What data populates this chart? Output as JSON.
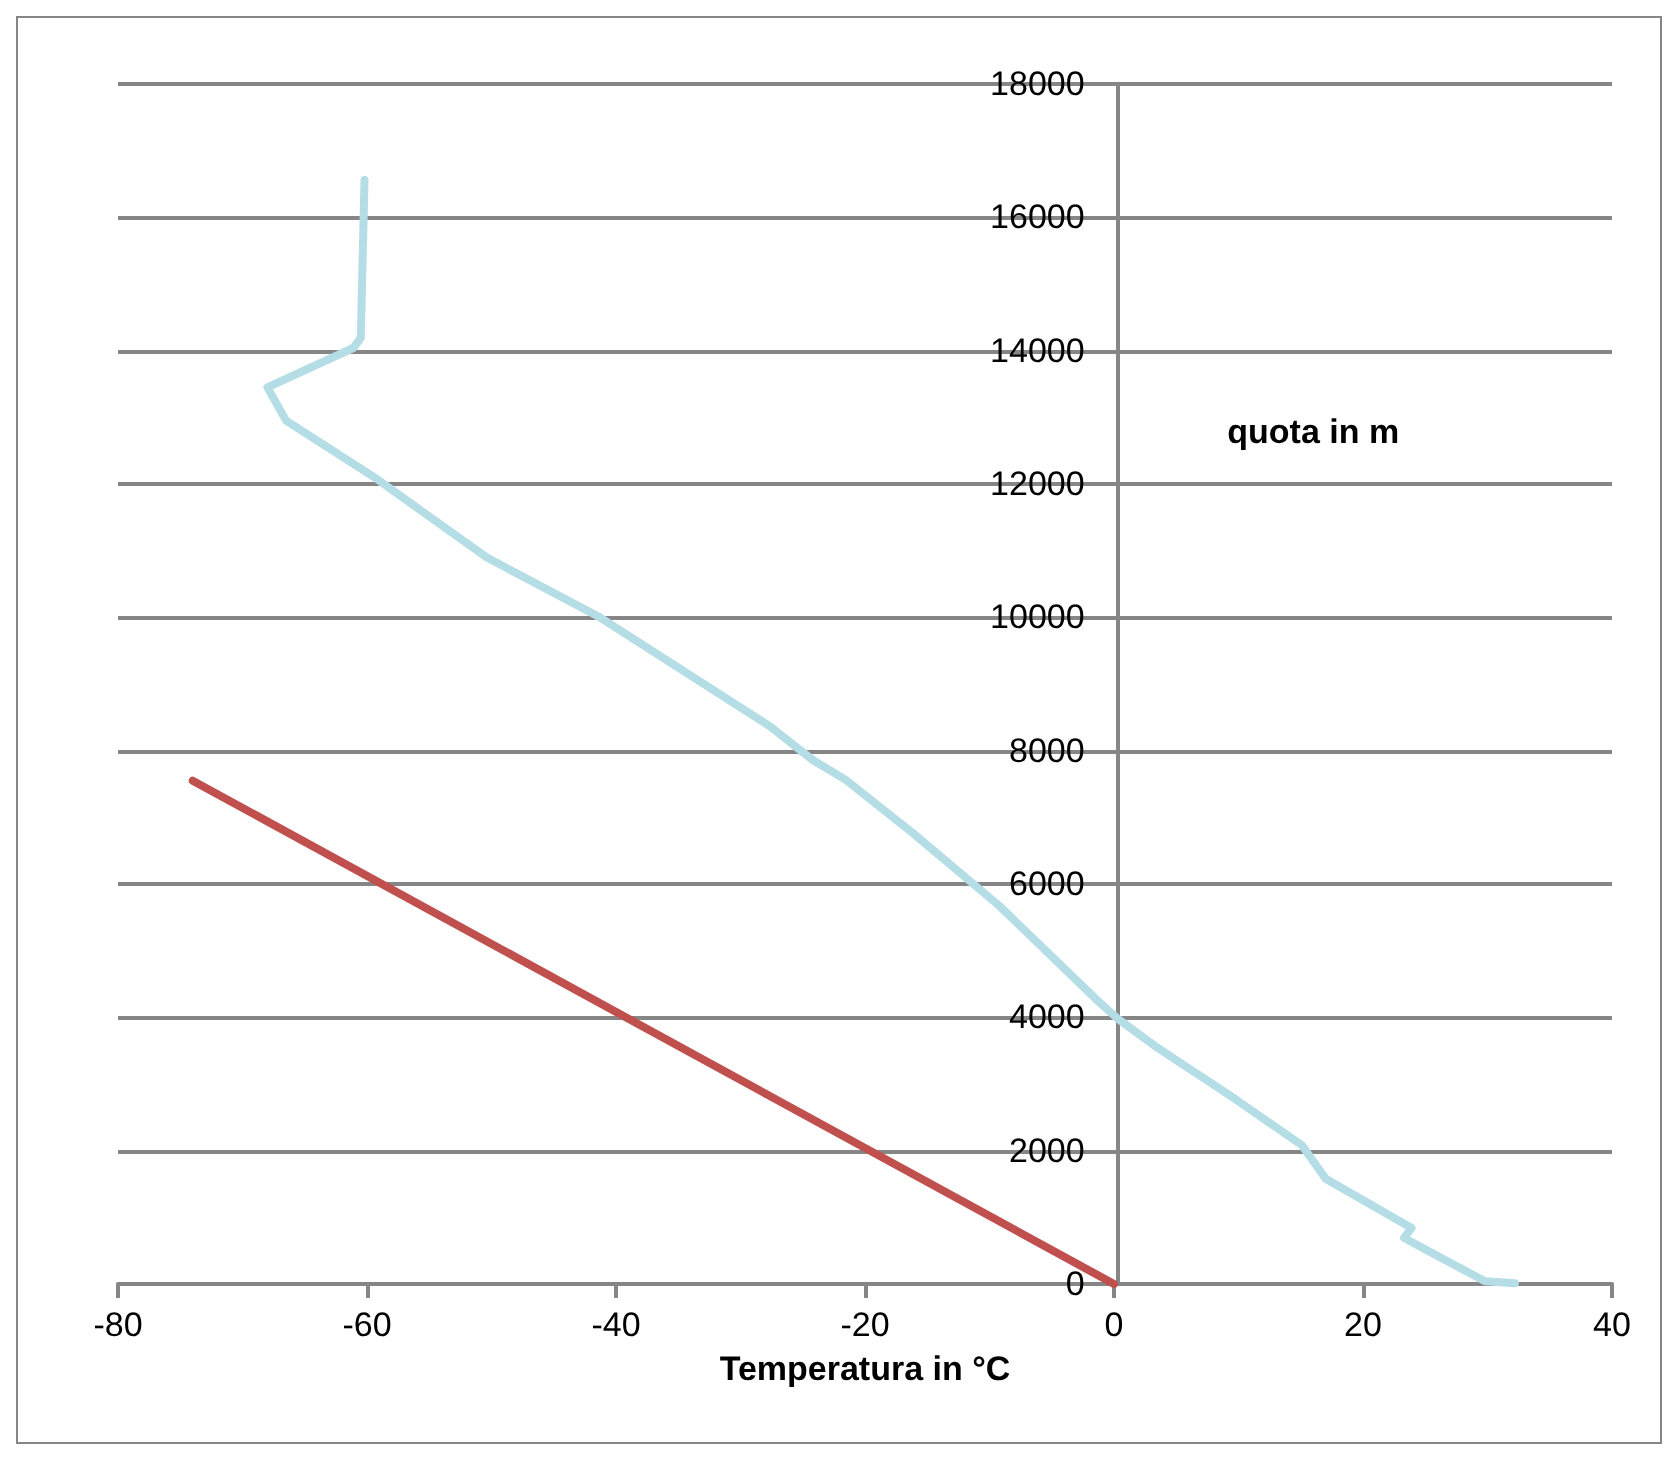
{
  "chart_data": {
    "type": "line",
    "xlabel": "Temperatura in °C",
    "ylabel": "quota in m",
    "xlim": [
      -80,
      40
    ],
    "xticks": [
      -80,
      -60,
      -40,
      -20,
      0,
      20,
      40
    ],
    "ylim": [
      0,
      18000
    ],
    "yticks": [
      0,
      2000,
      4000,
      6000,
      8000,
      10000,
      12000,
      14000,
      16000,
      18000
    ],
    "grid": "y",
    "marker": "none",
    "line_style": "solid",
    "series": [
      {
        "color": "#b4dde6",
        "x": [
          -60.2,
          -60.5,
          -61.1,
          -68.0,
          -66.5,
          -59.4,
          -50.4,
          -41.3,
          -27.6,
          -24.2,
          -21.6,
          -16.2,
          -9.2,
          -1.2,
          0.3,
          3.6,
          9.7,
          15.1,
          17.0,
          23.9,
          23.3,
          29.8,
          32.2
        ],
        "values": [
          16560,
          14190,
          14040,
          13450,
          12950,
          12100,
          10900,
          10000,
          8360,
          7860,
          7570,
          6770,
          5670,
          4230,
          3980,
          3530,
          2780,
          2080,
          1580,
          840,
          690,
          40,
          10
        ]
      },
      {
        "color": "#c0504d",
        "x": [
          0,
          -74
        ],
        "values": [
          0,
          7550
        ]
      }
    ]
  }
}
